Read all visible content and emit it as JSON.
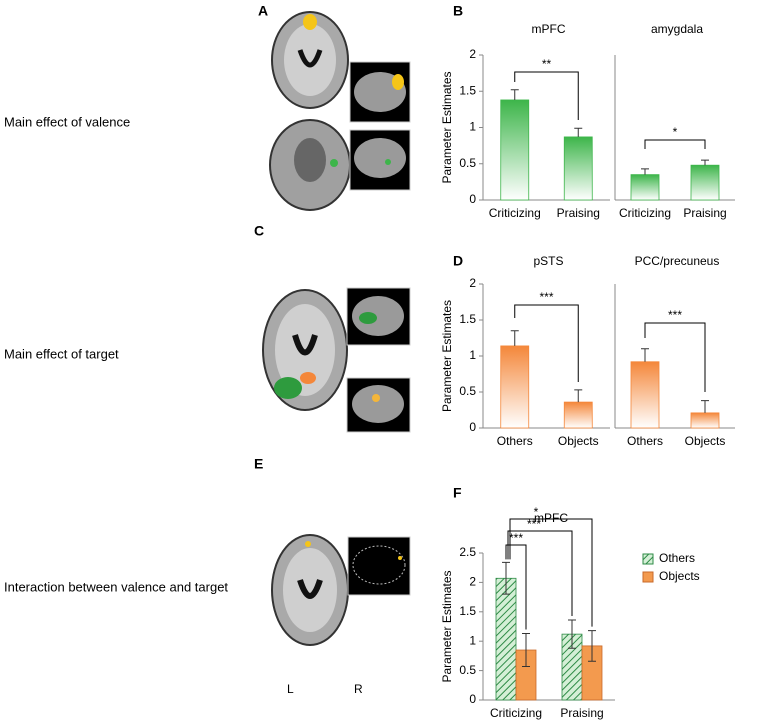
{
  "panel_letters": [
    "A",
    "B",
    "C",
    "D",
    "E",
    "F"
  ],
  "row_labels": [
    "Main effect of valence",
    "Main effect of target",
    "Interaction between valence and target"
  ],
  "hemisphere_labels": [
    "L",
    "R"
  ],
  "chart_data": [
    {
      "type": "bar",
      "title": "mPFC",
      "categories": [
        "Criticizing",
        "Praising"
      ],
      "values": [
        1.38,
        0.87
      ],
      "errors": [
        0.14,
        0.12
      ],
      "error_direction": "up",
      "color": "#3db54a",
      "ylim": [
        0,
        2
      ],
      "yticks": [
        0,
        0.5,
        1,
        1.5,
        2
      ],
      "ylabel": "Parameter Estimates",
      "annotations": [
        "**"
      ]
    },
    {
      "type": "bar",
      "title": "amygdala",
      "categories": [
        "Criticizing",
        "Praising"
      ],
      "values": [
        0.35,
        0.48
      ],
      "errors": [
        0.08,
        0.07
      ],
      "error_direction": "up",
      "color": "#3db54a",
      "ylim": [
        0,
        2
      ],
      "annotations": [
        "*"
      ]
    },
    {
      "type": "bar",
      "title": "pSTS",
      "categories": [
        "Others",
        "Objects"
      ],
      "values": [
        1.14,
        0.36
      ],
      "errors": [
        0.21,
        0.17
      ],
      "error_direction": "up",
      "color": "#f4873a",
      "ylim": [
        0,
        2
      ],
      "yticks": [
        0,
        0.5,
        1,
        1.5,
        2
      ],
      "ylabel": "Parameter Estimates",
      "annotations": [
        "***"
      ]
    },
    {
      "type": "bar",
      "title": "PCC/precuneus",
      "categories": [
        "Others",
        "Objects"
      ],
      "values": [
        0.92,
        0.21
      ],
      "errors": [
        0.18,
        0.17
      ],
      "error_direction": "up",
      "color": "#f4873a",
      "ylim": [
        0,
        2
      ],
      "annotations": [
        "***"
      ]
    },
    {
      "type": "grouped_bar",
      "title": "mPFC",
      "categories": [
        "Criticizing",
        "Praising"
      ],
      "series": [
        {
          "name": "Others",
          "color": "#2e8b46",
          "pattern": "hatch",
          "values": [
            2.07,
            1.12
          ],
          "errors": [
            0.27,
            0.24
          ]
        },
        {
          "name": "Objects",
          "color": "#f39a4e",
          "values": [
            0.85,
            0.92
          ],
          "errors": [
            0.28,
            0.26
          ]
        }
      ],
      "error_direction": "both",
      "ylim": [
        0,
        2.5
      ],
      "yticks": [
        0,
        0.5,
        1,
        1.5,
        2,
        2.5
      ],
      "ylabel": "Parameter Estimates",
      "legend": "right",
      "annotations": [
        "***",
        "***",
        "*"
      ]
    }
  ]
}
